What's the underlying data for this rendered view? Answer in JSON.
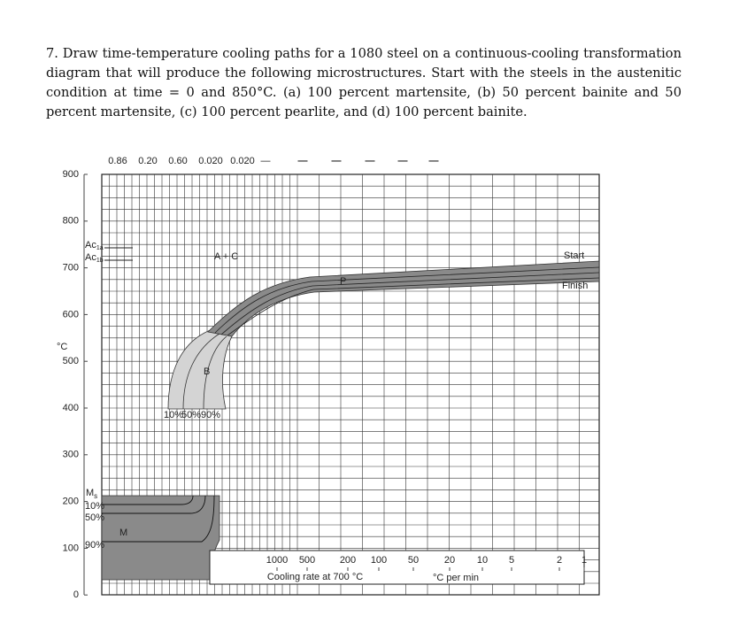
{
  "question": "7. Draw time-temperature cooling paths for a 1080 steel on a continuous-cooling transformation diagram that will produce the following microstructures. Start with the steels in the austenitic condition at time = 0 and 850°C. (a) 100 percent martensite, (b) 50 percent bainite and 50 percent martensite, (c) 100 percent pearlite, and (d) 100 percent bainite.",
  "diagram": {
    "temperature_unit": "°C",
    "temperature_labels": [
      "900",
      "800",
      "700",
      "600",
      "500",
      "400",
      "300",
      "200",
      "100",
      "0"
    ],
    "composition_labels": [
      "0.86",
      "0.20",
      "0.60",
      "0.020",
      "0.020",
      "—"
    ],
    "dash_labels": [
      "—",
      "—",
      "—",
      "—",
      "—"
    ],
    "regions": {
      "austenite_carbide": "A + C",
      "pearlite": "P",
      "bainite": "B",
      "martensite": "M"
    },
    "curve_labels": {
      "start": "Start",
      "finish": "Finish"
    },
    "ac1a": {
      "base": "Ac",
      "sub": "1a"
    },
    "ac1b": {
      "base": "Ac",
      "sub": "1b"
    },
    "ms": {
      "base": "M",
      "sub": "s"
    },
    "martensite_percent": [
      "10%",
      "50%",
      "90%"
    ],
    "bainite_percent": [
      "10%",
      "50%",
      "90%"
    ],
    "cooling_rates": [
      "1000",
      "500",
      "200",
      "100",
      "50",
      "20",
      "10",
      "5",
      "2",
      "1"
    ],
    "cooling_rate_caption": "Cooling rate at 700 °C",
    "rate_unit": "°C per min"
  }
}
